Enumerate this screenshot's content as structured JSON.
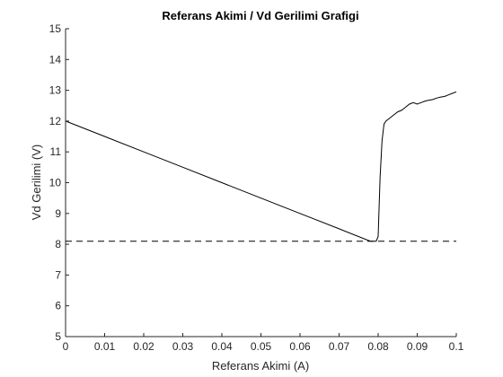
{
  "chart_data": {
    "type": "line",
    "title": "Referans Akimi / Vd Gerilimi Grafigi",
    "xlabel": "Referans Akimi (A)",
    "ylabel": "Vd Gerilimi (V)",
    "xlim": [
      0,
      0.1
    ],
    "ylim": [
      5,
      15
    ],
    "xticks": [
      "0",
      "0.01",
      "0.02",
      "0.03",
      "0.04",
      "0.05",
      "0.06",
      "0.07",
      "0.08",
      "0.09",
      "0.1"
    ],
    "yticks": [
      "5",
      "6",
      "7",
      "8",
      "9",
      "10",
      "11",
      "12",
      "13",
      "14",
      "15"
    ],
    "grid": false,
    "series": [
      {
        "style": "solid",
        "color": "#000000",
        "x": [
          0,
          0.01,
          0.02,
          0.03,
          0.04,
          0.05,
          0.06,
          0.07,
          0.078,
          0.0795,
          0.08,
          0.0805,
          0.081,
          0.0815,
          0.082,
          0.083,
          0.084,
          0.085,
          0.086,
          0.087,
          0.088,
          0.089,
          0.09,
          0.091,
          0.092,
          0.093,
          0.094,
          0.095,
          0.096,
          0.097,
          0.098,
          0.099,
          0.1
        ],
        "y": [
          12.0,
          11.5,
          11.0,
          10.5,
          10.0,
          9.5,
          9.0,
          8.5,
          8.1,
          8.1,
          8.25,
          10.2,
          11.35,
          11.9,
          12.0,
          12.1,
          12.2,
          12.3,
          12.35,
          12.45,
          12.55,
          12.6,
          12.55,
          12.6,
          12.65,
          12.68,
          12.7,
          12.75,
          12.78,
          12.8,
          12.85,
          12.9,
          12.95
        ]
      },
      {
        "style": "dashed",
        "color": "#000000",
        "x": [
          0,
          0.1
        ],
        "y": [
          8.1,
          8.1
        ]
      }
    ]
  }
}
